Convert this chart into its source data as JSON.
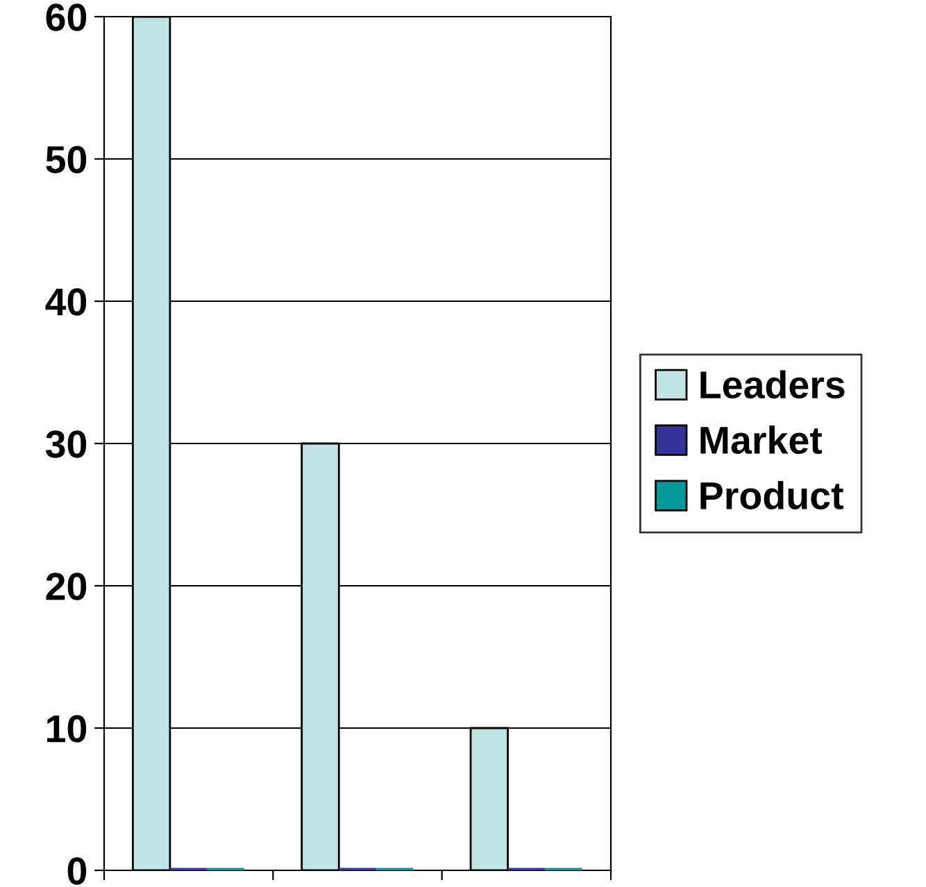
{
  "chart_data": {
    "type": "bar",
    "categories": [
      null,
      null,
      null
    ],
    "series": [
      {
        "name": "Leaders",
        "color": "#c0e4e4",
        "values": [
          60,
          30,
          10
        ]
      },
      {
        "name": "Market",
        "color": "#333399",
        "values": [
          0,
          0,
          0
        ]
      },
      {
        "name": "Product",
        "color": "#009999",
        "values": [
          0,
          0,
          0
        ]
      }
    ],
    "ylim": [
      0,
      60
    ],
    "yticks": [
      0,
      10,
      20,
      30,
      40,
      50,
      60
    ],
    "grid": "y",
    "legend": "right"
  }
}
